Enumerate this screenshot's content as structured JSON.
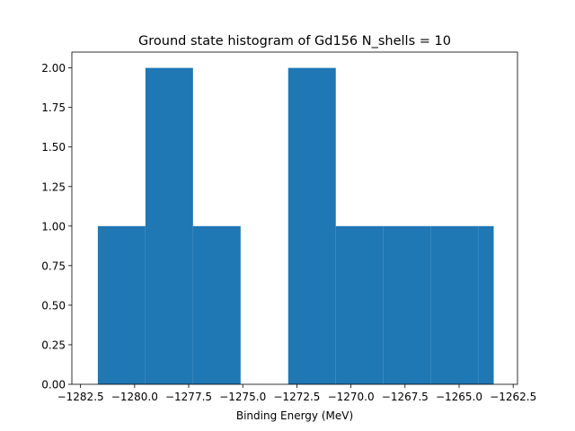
{
  "chart_data": {
    "type": "bar",
    "title": "Ground state histogram of Gd156 N_shells = 10",
    "xlabel": "Binding Energy (MeV)",
    "ylabel": "",
    "xlim": [
      -1282.9,
      -1262.3
    ],
    "ylim": [
      0,
      2.1
    ],
    "grid": false,
    "color": "#1f77b4",
    "bins": [
      {
        "x0": -1281.7,
        "x1": -1279.5,
        "count": 1
      },
      {
        "x0": -1279.5,
        "x1": -1277.3,
        "count": 2
      },
      {
        "x0": -1277.3,
        "x1": -1275.1,
        "count": 1
      },
      {
        "x0": -1275.1,
        "x1": -1272.9,
        "count": 0
      },
      {
        "x0": -1272.9,
        "x1": -1270.7,
        "count": 2
      },
      {
        "x0": -1270.7,
        "x1": -1268.5,
        "count": 1
      },
      {
        "x0": -1268.5,
        "x1": -1266.3,
        "count": 1
      },
      {
        "x0": -1266.3,
        "x1": -1264.1,
        "count": 1
      },
      {
        "x0": -1264.1,
        "x1": -1263.4,
        "count": 1
      }
    ],
    "x_ticks": [
      -1282.5,
      -1280.0,
      -1277.5,
      -1275.0,
      -1272.5,
      -1270.0,
      -1267.5,
      -1265.0,
      -1262.5
    ],
    "x_tick_labels": [
      "−1282.5",
      "−1280.0",
      "−1277.5",
      "−1275.0",
      "−1272.5",
      "−1270.0",
      "−1267.5",
      "−1265.0",
      "−1262.5"
    ],
    "y_ticks": [
      0,
      0.25,
      0.5,
      0.75,
      1.0,
      1.25,
      1.5,
      1.75,
      2.0
    ],
    "y_tick_labels": [
      "0.00",
      "0.25",
      "0.50",
      "0.75",
      "1.00",
      "1.25",
      "1.50",
      "1.75",
      "2.00"
    ]
  }
}
